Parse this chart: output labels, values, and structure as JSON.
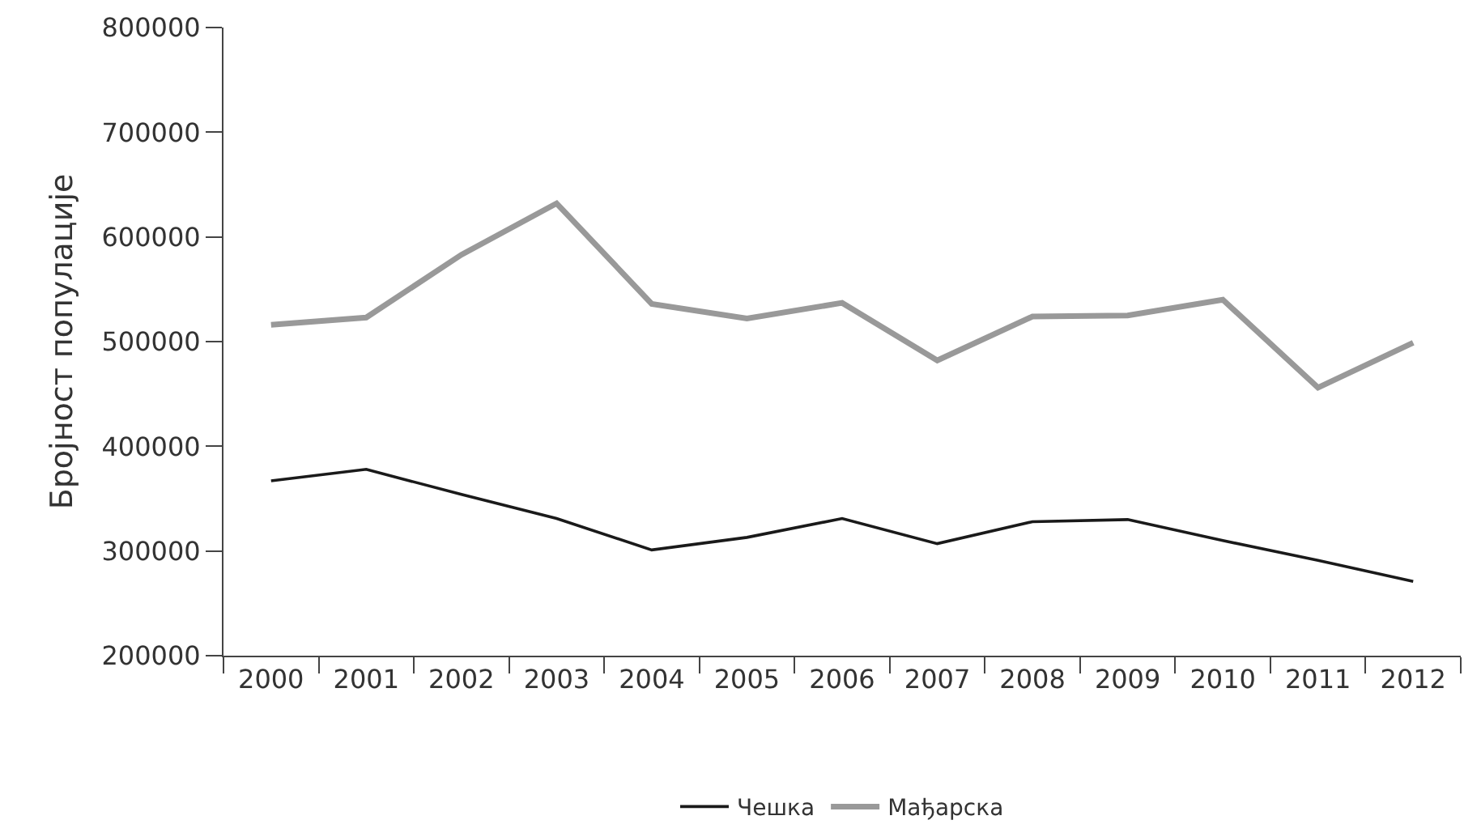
{
  "chart_data": {
    "type": "line",
    "ylabel": "Бројност популације",
    "categories": [
      "2000",
      "2001",
      "2002",
      "2003",
      "2004",
      "2005",
      "2006",
      "2007",
      "2008",
      "2009",
      "2010",
      "2011",
      "2012"
    ],
    "series": [
      {
        "name": "Чешка",
        "color": "#1a1a1a",
        "values": [
          367000,
          378000,
          354000,
          331000,
          301000,
          313000,
          331000,
          307000,
          328000,
          330000,
          310000,
          291000,
          271000
        ]
      },
      {
        "name": "Мађарска",
        "color": "#999999",
        "values": [
          516000,
          523000,
          583000,
          632000,
          536000,
          522000,
          537000,
          482000,
          524000,
          525000,
          540000,
          456000,
          499000
        ]
      }
    ],
    "ylim": [
      200000,
      800000
    ],
    "yticks": [
      200000,
      300000,
      400000,
      500000,
      600000,
      700000,
      800000
    ],
    "grid": false,
    "legend": "bottom",
    "marker": "none",
    "line_style": "solid"
  }
}
